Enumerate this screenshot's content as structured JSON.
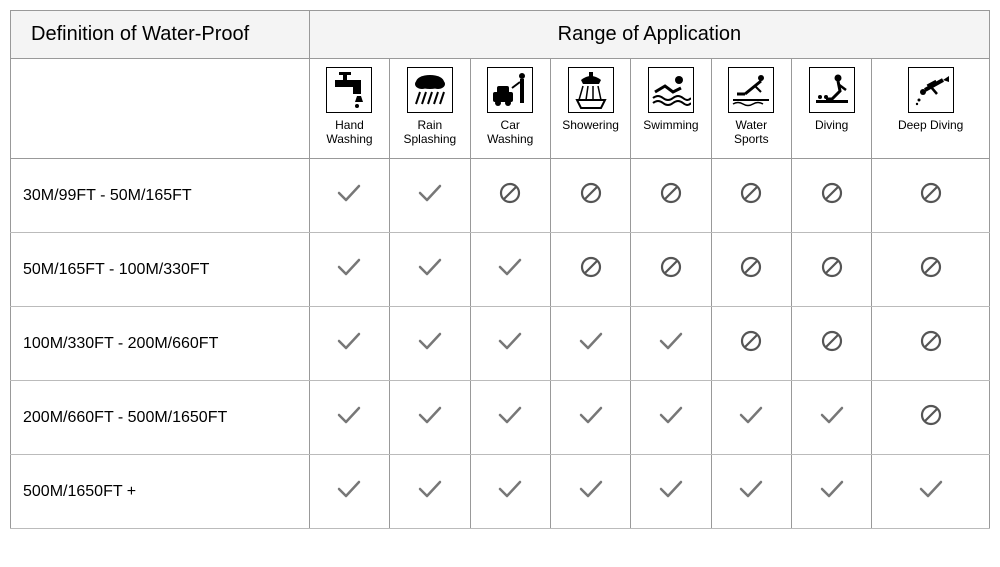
{
  "headers": {
    "definition": "Definition of Water-Proof",
    "range": "Range of Application"
  },
  "activities": [
    {
      "id": "hand-washing",
      "label": "Hand\nWashing",
      "icon": "faucet"
    },
    {
      "id": "rain-splashing",
      "label": "Rain\nSplashing",
      "icon": "rain"
    },
    {
      "id": "car-washing",
      "label": "Car\nWashing",
      "icon": "carwash"
    },
    {
      "id": "showering",
      "label": "Showering",
      "icon": "shower"
    },
    {
      "id": "swimming",
      "label": "Swimming",
      "icon": "swim"
    },
    {
      "id": "water-sports",
      "label": "Water\nSports",
      "icon": "dive"
    },
    {
      "id": "diving",
      "label": "Diving",
      "icon": "sitdive"
    },
    {
      "id": "deep-diving",
      "label": "Deep Diving",
      "icon": "scuba"
    }
  ],
  "rows": [
    {
      "label": "30M/99FT    -   50M/165FT",
      "marks": [
        "yes",
        "yes",
        "no",
        "no",
        "no",
        "no",
        "no",
        "no"
      ]
    },
    {
      "label": "50M/165FT    -   100M/330FT",
      "marks": [
        "yes",
        "yes",
        "yes",
        "no",
        "no",
        "no",
        "no",
        "no"
      ]
    },
    {
      "label": "100M/330FT    -   200M/660FT",
      "marks": [
        "yes",
        "yes",
        "yes",
        "yes",
        "yes",
        "no",
        "no",
        "no"
      ]
    },
    {
      "label": "200M/660FT   -   500M/1650FT",
      "marks": [
        "yes",
        "yes",
        "yes",
        "yes",
        "yes",
        "yes",
        "yes",
        "no"
      ]
    },
    {
      "label": "500M/1650FT  +",
      "marks": [
        "yes",
        "yes",
        "yes",
        "yes",
        "yes",
        "yes",
        "yes",
        "yes"
      ]
    }
  ],
  "colors": {
    "check_stroke": "#777777",
    "forbid_stroke": "#555555",
    "border": "#999999",
    "header_bg": "#f4f4f4",
    "icon_fill": "#000000"
  }
}
